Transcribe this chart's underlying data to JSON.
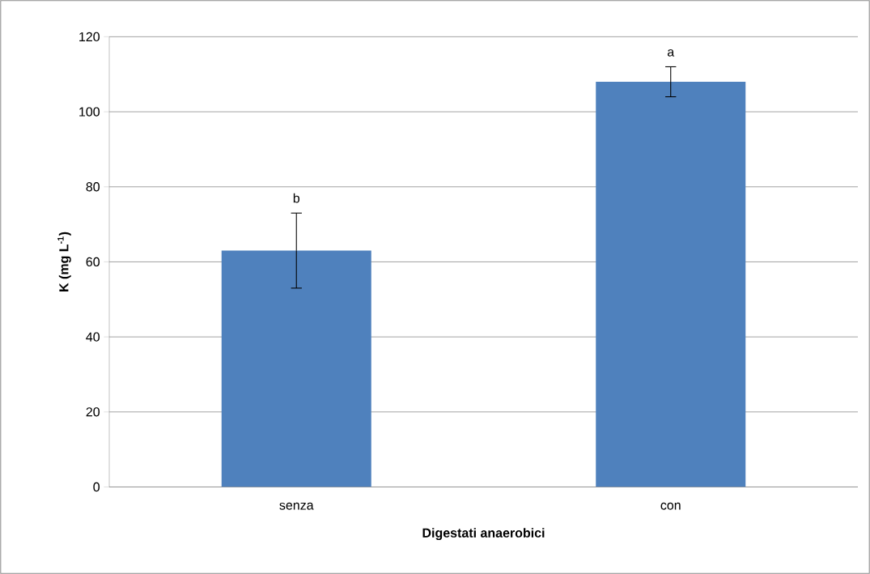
{
  "chart_data": {
    "type": "bar",
    "xlabel": "Digestati anaerobici",
    "ylabel": "K (mg L$^{-1}$)",
    "categories": [
      "senza",
      "con"
    ],
    "values": [
      63,
      108
    ],
    "errors": [
      10,
      4
    ],
    "color": "#4f81bd",
    "ylim": [
      0,
      120
    ],
    "yticks": [
      0,
      20,
      40,
      60,
      80,
      100,
      120
    ],
    "grid": "y",
    "annotations": [
      "b",
      "a"
    ]
  }
}
